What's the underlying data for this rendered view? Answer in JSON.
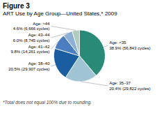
{
  "chart_data": {
    "type": "pie",
    "title": "Figure 3",
    "subtitle": "ART Use by Age Group—United States,* 2009",
    "caption": "*Total does not equal 100% due to rounding.",
    "categories": [
      "Age: <35",
      "Age: 35–37",
      "Age: 38–40",
      "Age: 41–42",
      "Age: 43–44",
      "Age: >44"
    ],
    "values": [
      38.9,
      20.4,
      20.5,
      9.8,
      6.0,
      4.6
    ],
    "value_labels": [
      "38.9% (56,843 cycles)",
      "20.4% (29,822 cycles)",
      "20.5% (29,907 cycles)",
      "9.8% (14,261 cycles)",
      "6.0% (8,745 cycles)",
      "4.6% (6,666 cycles)"
    ],
    "data_labels": true,
    "colors": [
      "#2a8a78",
      "#a0c4d4",
      "#1a5da0",
      "#4a7ec0",
      "#8eb0d8",
      "#b0ccbc"
    ]
  }
}
